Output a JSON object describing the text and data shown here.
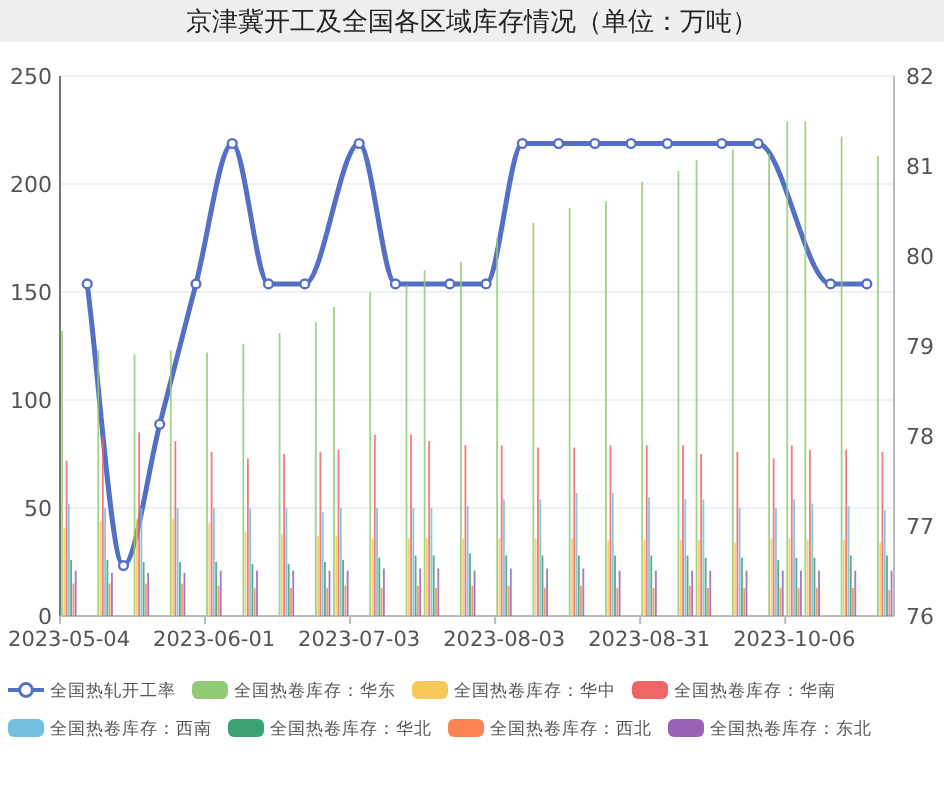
{
  "chart_data": {
    "type": "bar",
    "title": "京津冀开工及全国各区域库存情况（单位：万吨）",
    "categories": [
      "2023-05-04",
      null,
      null,
      null,
      null,
      null,
      null,
      null,
      "2023-06-01",
      null,
      null,
      null,
      null,
      null,
      null,
      null,
      "2023-07-03",
      null,
      null,
      null,
      null,
      null,
      null,
      null,
      "2023-08-03",
      null,
      null,
      null,
      null,
      null,
      null,
      null,
      "2023-08-31",
      null,
      null,
      null,
      null,
      null,
      null,
      null,
      "2023-10-06",
      null,
      null,
      null,
      null,
      null
    ],
    "series": [
      {
        "name": "全国热轧开工率",
        "type": "line",
        "axis": "y2",
        "color": "#5470c6",
        "values": [
          null,
          79.69,
          null,
          76.56,
          null,
          78.13,
          null,
          79.69,
          null,
          81.25,
          null,
          79.69,
          null,
          79.69,
          null,
          null,
          81.25,
          null,
          79.69,
          null,
          null,
          79.69,
          null,
          79.69,
          null,
          81.25,
          null,
          81.25,
          null,
          81.25,
          null,
          81.25,
          null,
          81.25,
          null,
          null,
          81.25,
          null,
          81.25,
          null,
          null,
          null,
          79.69,
          null,
          79.69,
          null
        ]
      },
      {
        "name": "全国热卷库存：华东",
        "color": "#91cc75",
        "values": [
          132,
          null,
          123,
          null,
          121,
          null,
          123,
          null,
          122,
          null,
          126,
          null,
          131,
          null,
          136,
          143,
          null,
          150,
          null,
          153,
          160,
          null,
          164,
          null,
          175,
          null,
          182,
          null,
          189,
          null,
          192,
          null,
          201,
          null,
          206,
          211,
          null,
          216,
          null,
          214,
          229,
          229,
          null,
          222,
          null,
          213
        ]
      },
      {
        "name": "全国热卷库存：华中",
        "color": "#fac858",
        "values": [
          41,
          null,
          44,
          null,
          45,
          null,
          45,
          null,
          43,
          null,
          39,
          null,
          38,
          null,
          37,
          37,
          null,
          36,
          null,
          36,
          36,
          null,
          36,
          null,
          36,
          null,
          36,
          null,
          36,
          null,
          35,
          null,
          35,
          null,
          35,
          35,
          null,
          34,
          null,
          36,
          36,
          35,
          null,
          35,
          null,
          34
        ]
      },
      {
        "name": "全国热卷库存：华南",
        "color": "#ee6666",
        "values": [
          72,
          null,
          83,
          null,
          85,
          null,
          81,
          null,
          76,
          null,
          73,
          null,
          75,
          null,
          76,
          77,
          null,
          84,
          null,
          84,
          81,
          null,
          79,
          null,
          79,
          null,
          78,
          null,
          78,
          null,
          79,
          null,
          79,
          null,
          79,
          75,
          null,
          76,
          null,
          73,
          79,
          77,
          null,
          77,
          null,
          76
        ]
      },
      {
        "name": "全国热卷库存：西南",
        "color": "#73c0de",
        "values": [
          52,
          null,
          50,
          null,
          50,
          null,
          50,
          null,
          50,
          null,
          50,
          null,
          50,
          null,
          48,
          50,
          null,
          50,
          null,
          50,
          50,
          null,
          51,
          null,
          54,
          null,
          54,
          null,
          57,
          null,
          57,
          null,
          55,
          null,
          54,
          54,
          null,
          50,
          null,
          50,
          54,
          52,
          null,
          51,
          null,
          49
        ]
      },
      {
        "name": "全国热卷库存：华北",
        "color": "#3ba272",
        "values": [
          26,
          null,
          26,
          null,
          25,
          null,
          25,
          null,
          25,
          null,
          24,
          null,
          24,
          null,
          25,
          26,
          null,
          27,
          null,
          28,
          28,
          null,
          29,
          null,
          28,
          null,
          28,
          null,
          28,
          null,
          28,
          null,
          28,
          null,
          28,
          27,
          null,
          27,
          null,
          26,
          27,
          27,
          null,
          28,
          null,
          28
        ]
      },
      {
        "name": "全国热卷库存：西北",
        "color": "#fc8452",
        "values": [
          15,
          null,
          15,
          null,
          15,
          null,
          15,
          null,
          14,
          null,
          13,
          null,
          13,
          null,
          13,
          14,
          null,
          13,
          null,
          14,
          13,
          null,
          14,
          null,
          14,
          null,
          13,
          null,
          14,
          null,
          13,
          null,
          13,
          null,
          14,
          13,
          null,
          13,
          null,
          13,
          13,
          13,
          null,
          13,
          null,
          12
        ]
      },
      {
        "name": "全国热卷库存：东北",
        "color": "#9a60b4",
        "values": [
          21,
          null,
          20,
          null,
          20,
          null,
          20,
          null,
          21,
          null,
          21,
          null,
          21,
          null,
          21,
          21,
          null,
          22,
          null,
          22,
          22,
          null,
          21,
          null,
          22,
          null,
          22,
          null,
          22,
          null,
          21,
          null,
          21,
          null,
          21,
          21,
          null,
          21,
          null,
          21,
          21,
          21,
          null,
          21,
          null,
          21
        ]
      }
    ],
    "ylim": [
      0,
      250
    ],
    "yticks": [
      0,
      50,
      100,
      150,
      200,
      250
    ],
    "y2lim": [
      76,
      82
    ],
    "y2ticks": [
      76,
      77,
      78,
      79,
      80,
      81,
      82
    ],
    "grid": "y",
    "legend": "bottom",
    "marker": "circle",
    "line_style": "solid"
  }
}
